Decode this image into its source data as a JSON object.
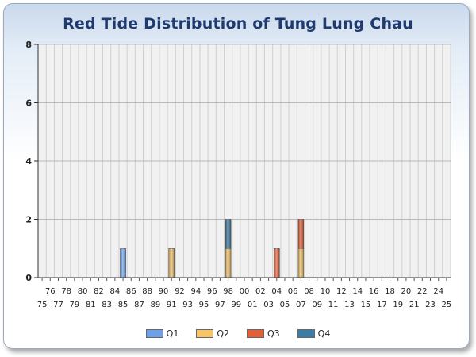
{
  "chart_data": {
    "type": "bar",
    "stacked": true,
    "title": "Red Tide Distribution of Tung Lung Chau",
    "xlabel": "",
    "ylabel": "",
    "ylim": [
      0,
      8
    ],
    "yticks": [
      0,
      2,
      4,
      6,
      8
    ],
    "grid": true,
    "legend_position": "bottom",
    "categories": [
      "75",
      "76",
      "77",
      "78",
      "79",
      "80",
      "81",
      "82",
      "83",
      "84",
      "85",
      "86",
      "87",
      "88",
      "89",
      "90",
      "91",
      "92",
      "93",
      "94",
      "95",
      "96",
      "97",
      "98",
      "99",
      "00",
      "01",
      "02",
      "03",
      "04",
      "05",
      "06",
      "07",
      "08",
      "09",
      "10",
      "11",
      "12",
      "13",
      "14",
      "15",
      "16",
      "17",
      "18",
      "19",
      "20",
      "21",
      "22",
      "23",
      "24",
      "25"
    ],
    "series": [
      {
        "name": "Q1",
        "color": "#6fa0e6",
        "values": [
          0,
          0,
          0,
          0,
          0,
          0,
          0,
          0,
          0,
          0,
          1,
          0,
          0,
          0,
          0,
          0,
          0,
          0,
          0,
          0,
          0,
          0,
          0,
          0,
          0,
          0,
          0,
          0,
          0,
          0,
          0,
          0,
          0,
          0,
          0,
          0,
          0,
          0,
          0,
          0,
          0,
          0,
          0,
          0,
          0,
          0,
          0,
          0,
          0,
          0,
          0
        ]
      },
      {
        "name": "Q2",
        "color": "#f6c56a",
        "values": [
          0,
          0,
          0,
          0,
          0,
          0,
          0,
          0,
          0,
          0,
          0,
          0,
          0,
          0,
          0,
          0,
          1,
          0,
          0,
          0,
          0,
          0,
          0,
          1,
          0,
          0,
          0,
          0,
          0,
          0,
          0,
          0,
          1,
          0,
          0,
          0,
          0,
          0,
          0,
          0,
          0,
          0,
          0,
          0,
          0,
          0,
          0,
          0,
          0,
          0,
          0
        ]
      },
      {
        "name": "Q3",
        "color": "#e0603a",
        "values": [
          0,
          0,
          0,
          0,
          0,
          0,
          0,
          0,
          0,
          0,
          0,
          0,
          0,
          0,
          0,
          0,
          0,
          0,
          0,
          0,
          0,
          0,
          0,
          0,
          0,
          0,
          0,
          0,
          0,
          1,
          0,
          0,
          1,
          0,
          0,
          0,
          0,
          0,
          0,
          0,
          0,
          0,
          0,
          0,
          0,
          0,
          0,
          0,
          0,
          0,
          0
        ]
      },
      {
        "name": "Q4",
        "color": "#3d7ca3",
        "values": [
          0,
          0,
          0,
          0,
          0,
          0,
          0,
          0,
          0,
          0,
          0,
          0,
          0,
          0,
          0,
          0,
          0,
          0,
          0,
          0,
          0,
          0,
          0,
          1,
          0,
          0,
          0,
          0,
          0,
          0,
          0,
          0,
          0,
          0,
          0,
          0,
          0,
          0,
          0,
          0,
          0,
          0,
          0,
          0,
          0,
          0,
          0,
          0,
          0,
          0,
          0
        ]
      }
    ]
  }
}
